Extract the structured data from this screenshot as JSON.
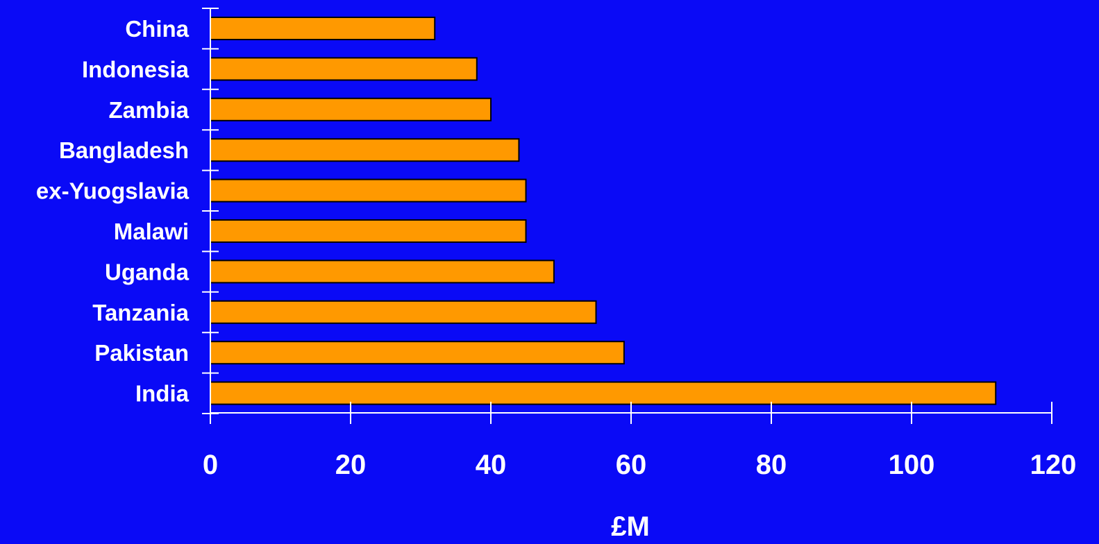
{
  "chart_data": {
    "type": "bar",
    "orientation": "horizontal",
    "categories": [
      "China",
      "Indonesia",
      "Zambia",
      "Bangladesh",
      "ex-Yuogslavia",
      "Malawi",
      "Uganda",
      "Tanzania",
      "Pakistan",
      "India"
    ],
    "values": [
      32,
      38,
      40,
      44,
      45,
      45,
      49,
      55,
      59,
      112
    ],
    "xlabel": "£M",
    "ylabel": "",
    "xlim": [
      0,
      120
    ],
    "xticks": [
      "0",
      "20",
      "40",
      "60",
      "80",
      "100",
      "120"
    ],
    "grid": false,
    "legend": "none",
    "colors": {
      "background": "#0a0af6",
      "bar_fill": "#ff9900",
      "bar_stroke": "#000000",
      "axis": "#ffffff",
      "text": "#ffffff"
    }
  }
}
